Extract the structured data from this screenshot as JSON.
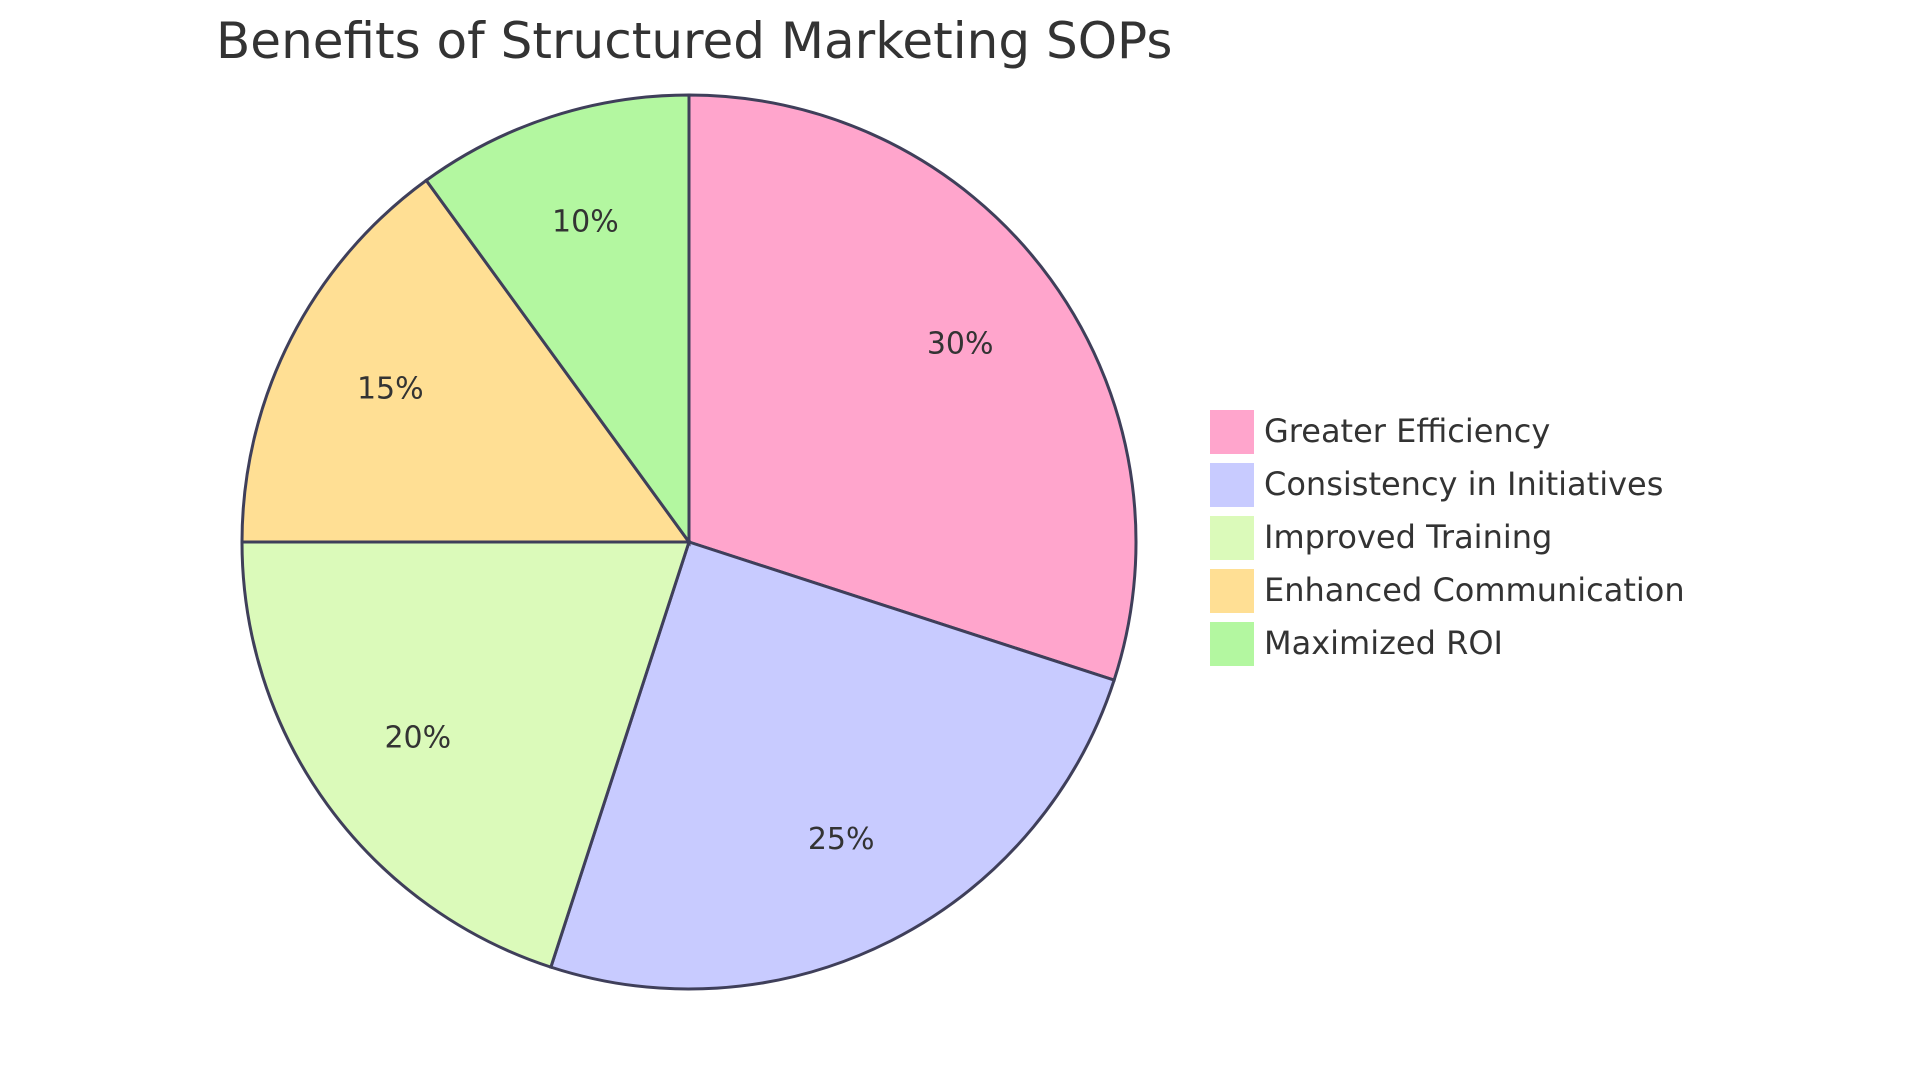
{
  "chart_data": {
    "type": "pie",
    "title": "Benefits of Structured Marketing SOPs",
    "slices": [
      {
        "label": "Greater Efficiency",
        "value": 30,
        "display": "30%",
        "color": "#FFA5CC"
      },
      {
        "label": "Consistency in Initiatives",
        "value": 25,
        "display": "25%",
        "color": "#C8CBFF"
      },
      {
        "label": "Improved Training",
        "value": 20,
        "display": "20%",
        "color": "#DBFABA"
      },
      {
        "label": "Enhanced Communication",
        "value": 15,
        "display": "15%",
        "color": "#FFDF94"
      },
      {
        "label": "Maximized ROI",
        "value": 10,
        "display": "10%",
        "color": "#B3F7A0"
      }
    ],
    "start_angle": "top, clockwise",
    "legend_position": "right",
    "stroke_color": "#3f3f5a"
  }
}
